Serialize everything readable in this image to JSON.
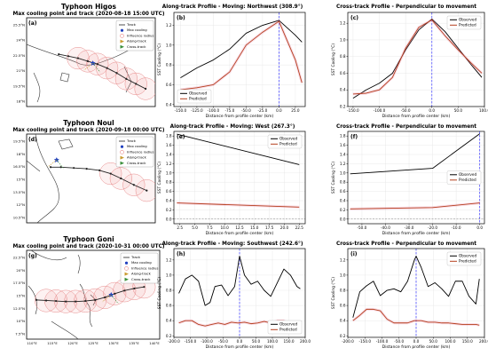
{
  "figure": {
    "ylabel_sst": "SST Cooling (°C)",
    "xlabel_distance": "Distance from profile center (km)",
    "legend_track": "Track",
    "legend_max": "Max cooling",
    "legend_radius": "Influence radius",
    "legend_along": "Along-track",
    "legend_cross": "Cross-track",
    "legend_observed": "Observed",
    "legend_predicted": "Predicted"
  },
  "colors": {
    "observed": "#000000",
    "predicted": "#b5401e",
    "center_line": "#3a3aff",
    "track": "#222222",
    "circle": "#e88a8a",
    "max_marker": "#1f3fbf",
    "along_marker": "#c99a2e",
    "cross_marker": "#3a8f3a"
  },
  "chart_data": [
    {
      "id": "higos_map",
      "type": "map",
      "suptitle": "Typhoon Higos",
      "title": "Max cooling point and track (2020-08-18 15:00 UTC)",
      "panel": "(a)",
      "lat_ticks": [
        "25.5°N",
        "24°N",
        "22.5°N",
        "21°N",
        "19.5°N",
        "18°N"
      ],
      "lat_range": [
        17.5,
        26.5
      ],
      "lon_range": [
        106,
        126
      ],
      "track": [
        [
          124.5,
          19.3
        ],
        [
          123,
          19.8
        ],
        [
          121.5,
          20.3
        ],
        [
          120,
          20.9
        ],
        [
          118.5,
          21.4
        ],
        [
          117,
          21.8
        ],
        [
          115.5,
          22.1
        ],
        [
          114,
          22.4
        ],
        [
          112.5,
          22.6
        ],
        [
          111,
          22.8
        ]
      ],
      "circles": [
        [
          124.5,
          19.3
        ],
        [
          123,
          19.8
        ],
        [
          121.5,
          20.3
        ],
        [
          120,
          20.9
        ],
        [
          118.5,
          21.4
        ],
        [
          117,
          21.8
        ],
        [
          115.5,
          22.1
        ],
        [
          114,
          22.4
        ]
      ],
      "max_cooling": [
        116.3,
        21.9
      ]
    },
    {
      "id": "higos_along",
      "type": "line",
      "panel": "(b)",
      "title": "Along-track Profile - Moving: Northwest (308.9°)",
      "xlim": [
        -160,
        40
      ],
      "ylim": [
        0.38,
        1.33
      ],
      "xticks": [
        -150,
        -125,
        -100,
        -75,
        -50,
        -25,
        0,
        25
      ],
      "xtick_labels": [
        "-150.0",
        "-125.0",
        "-100.0",
        "-75.0",
        "-50.0",
        "-25.0",
        "0.0",
        "25.0"
      ],
      "yticks": [
        0.4,
        0.6,
        0.8,
        1.0,
        1.2
      ],
      "ytick_labels": [
        "0.4",
        "0.6",
        "0.8",
        "1.0",
        "1.2"
      ],
      "legend_position": "lower-left",
      "series": [
        {
          "name": "Observed",
          "x": [
            -150,
            -125,
            -100,
            -75,
            -50,
            -25,
            0,
            25,
            35
          ],
          "values": [
            0.67,
            0.77,
            0.85,
            0.96,
            1.12,
            1.2,
            1.25,
            1.1,
            1.03
          ]
        },
        {
          "name": "Predicted",
          "x": [
            -150,
            -125,
            -100,
            -75,
            -50,
            -25,
            0,
            25,
            35
          ],
          "values": [
            0.55,
            0.57,
            0.6,
            0.73,
            1.0,
            1.13,
            1.24,
            0.85,
            0.62
          ]
        }
      ]
    },
    {
      "id": "higos_cross",
      "type": "line",
      "panel": "(c)",
      "title": "Cross-track Profile - Perpendicular to movement",
      "xlim": [
        -160,
        100
      ],
      "ylim": [
        0.2,
        1.33
      ],
      "xticks": [
        -150,
        -100,
        -50,
        0,
        50,
        100
      ],
      "xtick_labels": [
        "-150.0",
        "-100.0",
        "-50.0",
        "0.0",
        "50.0",
        "100.0"
      ],
      "yticks": [
        0.2,
        0.4,
        0.6,
        0.8,
        1.0,
        1.2
      ],
      "ytick_labels": [
        "0.2",
        "0.4",
        "0.6",
        "0.8",
        "1.0",
        "1.2"
      ],
      "legend_position": "top-right",
      "series": [
        {
          "name": "Observed",
          "x": [
            -150,
            -125,
            -100,
            -75,
            -50,
            -25,
            0,
            25,
            50,
            75,
            95
          ],
          "values": [
            0.3,
            0.4,
            0.48,
            0.6,
            0.88,
            1.12,
            1.25,
            1.1,
            0.9,
            0.7,
            0.55
          ]
        },
        {
          "name": "Predicted",
          "x": [
            -150,
            -125,
            -100,
            -75,
            -50,
            -25,
            0,
            25,
            50,
            75,
            95
          ],
          "values": [
            0.35,
            0.36,
            0.4,
            0.55,
            0.9,
            1.15,
            1.24,
            1.05,
            0.88,
            0.72,
            0.6
          ]
        }
      ]
    },
    {
      "id": "noul_map",
      "type": "map",
      "suptitle": "Typhoon Noul",
      "title": "Max cooling point and track (2020-09-18 00:00 UTC)",
      "panel": "(d)",
      "lat_ticks": [
        "19.5°N",
        "18°N",
        "16.5°N",
        "15°N",
        "13.5°N",
        "12°N",
        "10.5°N"
      ],
      "lat_range": [
        9.5,
        20.5
      ],
      "lon_range": [
        103,
        118
      ],
      "track": [
        [
          117,
          13.5
        ],
        [
          115.5,
          14.2
        ],
        [
          114,
          15
        ],
        [
          112.8,
          15.6
        ],
        [
          111.5,
          16
        ],
        [
          110,
          16.2
        ],
        [
          108.5,
          16.3
        ],
        [
          107,
          16.4
        ],
        [
          105.8,
          16.4
        ]
      ],
      "circles": [
        [
          117,
          13.5
        ],
        [
          115.5,
          14.2
        ],
        [
          114,
          15
        ],
        [
          112.8,
          15.6
        ]
      ],
      "max_cooling": [
        106.5,
        17.3
      ]
    },
    {
      "id": "noul_along",
      "type": "line",
      "panel": "(e)",
      "title": "",
      "xlim": [
        1.5,
        23.5
      ],
      "ylim": [
        -0.1,
        1.9
      ],
      "xticks": [
        2.5,
        5,
        7.5,
        10,
        12.5,
        15,
        17.5,
        20,
        22.5
      ],
      "xtick_labels": [
        "2.5",
        "5.0",
        "7.5",
        "10.0",
        "12.5",
        "15.0",
        "17.5",
        "20.0",
        "22.5"
      ],
      "yticks": [
        0,
        0.2,
        0.4,
        0.6,
        0.8,
        1.0,
        1.2,
        1.4,
        1.6,
        1.8
      ],
      "ytick_labels": [
        "0.0",
        "0.2",
        "0.4",
        "0.6",
        "0.8",
        "1.0",
        "1.2",
        "1.4",
        "1.6",
        "1.8"
      ],
      "legend_position": "top-right",
      "series": [
        {
          "name": "Observed",
          "x": [
            2,
            22.5
          ],
          "values": [
            1.84,
            1.18
          ]
        },
        {
          "name": "Predicted",
          "x": [
            2,
            22.5
          ],
          "values": [
            0.35,
            0.26
          ]
        }
      ]
    },
    {
      "id": "noul_cross",
      "type": "line",
      "panel": "(f)",
      "title": "",
      "xlim": [
        -56,
        2
      ],
      "ylim": [
        -0.1,
        1.9
      ],
      "xticks": [
        -50,
        -40,
        -30,
        -20,
        -10,
        0
      ],
      "xtick_labels": [
        "-50.0",
        "-40.0",
        "-30.0",
        "-20.0",
        "-10.0",
        "0.0"
      ],
      "yticks": [
        0,
        0.2,
        0.4,
        0.6,
        0.8,
        1.0,
        1.2,
        1.4,
        1.6,
        1.8
      ],
      "ytick_labels": [
        "0.0",
        "0.2",
        "0.4",
        "0.6",
        "0.8",
        "1.0",
        "1.2",
        "1.4",
        "1.6",
        "1.8"
      ],
      "legend_position": "center-right",
      "series": [
        {
          "name": "Observed",
          "x": [
            -55,
            -20,
            0
          ],
          "values": [
            0.98,
            1.1,
            1.85
          ]
        },
        {
          "name": "Predicted",
          "x": [
            -55,
            -20,
            0
          ],
          "values": [
            0.22,
            0.25,
            0.35
          ]
        }
      ]
    },
    {
      "id": "goni_map",
      "type": "map",
      "suptitle": "Typhoon Goni",
      "title": "Max cooling point and track (2020-10-31 00:00 UTC)",
      "panel": "(g)",
      "lat_ticks": [
        "22.5°N",
        "20°N",
        "17.5°N",
        "15°N",
        "12.5°N",
        "10°N",
        "7.5°N"
      ],
      "lon_ticks": [
        "110°E",
        "115°E",
        "120°E",
        "125°E",
        "130°E",
        "135°E",
        "140°E"
      ],
      "lat_range": [
        6.5,
        23.5
      ],
      "lon_range": [
        108,
        142
      ],
      "track": [
        [
          138,
          16.5
        ],
        [
          135.5,
          16.2
        ],
        [
          133,
          15.8
        ],
        [
          130.5,
          15.2
        ],
        [
          128,
          14.5
        ],
        [
          125.5,
          14
        ],
        [
          123,
          13.8
        ],
        [
          120.5,
          13.7
        ],
        [
          118,
          13.7
        ],
        [
          115.5,
          13.8
        ],
        [
          113,
          13.9
        ],
        [
          110.5,
          14
        ]
      ],
      "circles": [
        [
          138,
          16.5
        ],
        [
          135.5,
          16.2
        ],
        [
          133,
          15.8
        ],
        [
          130.5,
          15.2
        ],
        [
          128,
          14.5
        ],
        [
          125.5,
          14
        ],
        [
          123,
          13.8
        ],
        [
          120.5,
          13.7
        ],
        [
          118,
          13.7
        ],
        [
          115.5,
          13.8
        ],
        [
          113,
          13.9
        ]
      ],
      "max_cooling": [
        129.6,
        15.0
      ]
    },
    {
      "id": "goni_along",
      "type": "line",
      "panel": "(h)",
      "title": "Along-track Profile - Moving: Southwest (242.6°)",
      "xlim": [
        -200,
        200
      ],
      "ylim": [
        0.18,
        1.35
      ],
      "xticks": [
        -200,
        -150,
        -100,
        -50,
        0,
        50,
        100,
        150,
        200
      ],
      "xtick_labels": [
        "-200.0",
        "-150.0",
        "-100.0",
        "-50.0",
        "0.0",
        "50.0",
        "100.0",
        "150.0",
        "200.0"
      ],
      "yticks": [
        0.2,
        0.4,
        0.6,
        0.8,
        1.0,
        1.2
      ],
      "ytick_labels": [
        "0.2",
        "0.4",
        "0.6",
        "0.8",
        "1.0",
        "1.2"
      ],
      "legend_position": "lower-right",
      "series": [
        {
          "name": "Observed",
          "x": [
            -185,
            -165,
            -145,
            -125,
            -105,
            -90,
            -75,
            -55,
            -35,
            -15,
            0,
            15,
            35,
            55,
            75,
            95,
            115,
            135,
            155,
            175,
            185
          ],
          "values": [
            0.76,
            0.95,
            1.0,
            0.92,
            0.6,
            0.64,
            0.85,
            0.87,
            0.73,
            0.85,
            1.25,
            1.0,
            0.88,
            0.92,
            0.8,
            0.72,
            0.9,
            1.08,
            1.0,
            0.85,
            0.82
          ]
        },
        {
          "name": "Predicted",
          "x": [
            -185,
            -165,
            -145,
            -125,
            -105,
            -85,
            -65,
            -45,
            -25,
            -5,
            15,
            35,
            55,
            75,
            95,
            115,
            135,
            155,
            175,
            185
          ],
          "values": [
            0.37,
            0.4,
            0.4,
            0.35,
            0.33,
            0.35,
            0.37,
            0.35,
            0.38,
            0.37,
            0.38,
            0.36,
            0.37,
            0.39,
            0.37,
            0.4,
            0.4,
            0.35,
            0.33,
            0.33
          ]
        }
      ]
    },
    {
      "id": "goni_cross",
      "type": "line",
      "panel": "(i)",
      "title": "Cross-track Profile - Perpendicular to movement",
      "xlim": [
        -200,
        200
      ],
      "ylim": [
        0.18,
        1.35
      ],
      "xticks": [
        -200,
        -150,
        -100,
        -50,
        0,
        50,
        100,
        150,
        200
      ],
      "xtick_labels": [
        "-200.0",
        "-150.0",
        "-100.0",
        "-50.0",
        "0.0",
        "50.0",
        "100.0",
        "150.0",
        "200.0"
      ],
      "yticks": [
        0.2,
        0.4,
        0.6,
        0.8,
        1.0,
        1.2
      ],
      "ytick_labels": [
        "0.2",
        "0.4",
        "0.6",
        "0.8",
        "1.0",
        "1.2"
      ],
      "legend_position": "top-right",
      "series": [
        {
          "name": "Observed",
          "x": [
            -185,
            -165,
            -145,
            -125,
            -105,
            -85,
            -65,
            -45,
            -25,
            -5,
            0,
            15,
            35,
            55,
            75,
            95,
            115,
            135,
            155,
            175,
            185
          ],
          "values": [
            0.44,
            0.78,
            0.86,
            0.92,
            0.73,
            0.8,
            0.82,
            0.78,
            0.92,
            1.2,
            1.25,
            1.1,
            0.85,
            0.9,
            0.82,
            0.72,
            0.92,
            0.92,
            0.72,
            0.62,
            0.95
          ]
        },
        {
          "name": "Predicted",
          "x": [
            -185,
            -165,
            -145,
            -125,
            -105,
            -85,
            -65,
            -45,
            -25,
            -5,
            15,
            35,
            55,
            75,
            95,
            115,
            135,
            155,
            175,
            185
          ],
          "values": [
            0.4,
            0.47,
            0.55,
            0.55,
            0.53,
            0.42,
            0.37,
            0.37,
            0.37,
            0.4,
            0.4,
            0.38,
            0.38,
            0.37,
            0.37,
            0.36,
            0.35,
            0.35,
            0.35,
            0.34
          ]
        }
      ]
    }
  ]
}
